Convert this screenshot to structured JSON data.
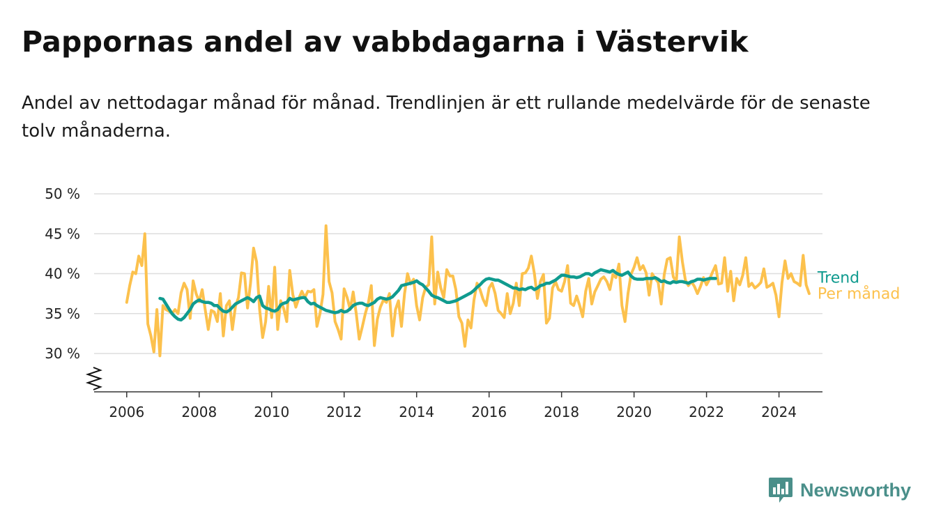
{
  "chart_data": {
    "type": "line",
    "title": "Pappornas andel av vabbdagarna i Västervik",
    "subtitle": "Andel av nettodagar månad för månad. Trendlinjen är ett rullande medelvärde för de senaste tolv månaderna.",
    "xlabel": "",
    "ylabel": "",
    "x_ticks": [
      "2006",
      "2008",
      "2010",
      "2012",
      "2014",
      "2016",
      "2018",
      "2020",
      "2022",
      "2024"
    ],
    "y_ticks": [
      "30 %",
      "35 %",
      "40 %",
      "45 %",
      "50 %"
    ],
    "ylim": [
      30,
      50
    ],
    "xlim": [
      2005.1,
      2025.2
    ],
    "grid": true,
    "legend_placement": "end-of-lines",
    "colors": {
      "monthly": "#fcc14d",
      "trend": "#109b8f",
      "grid": "#dddddd",
      "axis": "#333333"
    },
    "series": [
      {
        "name": "Per månad",
        "start": 2006.0,
        "step": 0.0833333,
        "values": [
          36.4,
          38.5,
          40.2,
          40.0,
          42.2,
          41.0,
          45.0,
          33.7,
          32.2,
          30.2,
          35.5,
          29.7,
          36.0,
          35.5,
          35.3,
          35.0,
          35.5,
          35.0,
          37.6,
          38.8,
          38.0,
          34.4,
          39.1,
          37.5,
          36.5,
          38.0,
          35.5,
          33.0,
          35.4,
          35.2,
          34.0,
          37.5,
          32.2,
          36.0,
          36.6,
          33.0,
          35.9,
          37.0,
          40.1,
          40.0,
          35.7,
          38.8,
          43.2,
          41.5,
          35.6,
          32.0,
          34.0,
          38.4,
          34.5,
          40.8,
          33.0,
          36.6,
          35.6,
          34.0,
          40.4,
          37.4,
          35.8,
          36.9,
          37.8,
          37.0,
          37.8,
          37.7,
          38.0,
          33.4,
          35.0,
          37.4,
          46.0,
          39.0,
          37.6,
          34.0,
          33.0,
          31.8,
          38.1,
          37.0,
          35.5,
          37.7,
          35.0,
          31.8,
          33.3,
          35.0,
          36.3,
          38.5,
          31.0,
          34.3,
          35.8,
          36.7,
          36.4,
          37.5,
          32.2,
          35.5,
          36.6,
          33.4,
          37.5,
          40.0,
          38.7,
          39.3,
          36.0,
          34.2,
          37.0,
          38.3,
          38.6,
          44.6,
          36.2,
          40.2,
          38.2,
          37.0,
          40.5,
          39.7,
          39.7,
          38.0,
          34.6,
          33.8,
          30.9,
          34.2,
          33.2,
          36.7,
          38.8,
          38.0,
          36.8,
          36.0,
          38.2,
          38.8,
          37.5,
          35.4,
          35.0,
          34.5,
          37.5,
          35.0,
          36.3,
          38.8,
          36.0,
          40.0,
          40.1,
          40.7,
          42.2,
          40.0,
          36.9,
          39.0,
          39.9,
          33.8,
          34.4,
          38.2,
          39.0,
          38.0,
          37.8,
          39.0,
          41.0,
          36.3,
          36.0,
          37.2,
          36.0,
          34.6,
          37.8,
          39.4,
          36.2,
          37.7,
          38.5,
          39.3,
          39.6,
          39.0,
          38.0,
          39.9,
          39.5,
          41.2,
          36.0,
          34.0,
          37.5,
          39.9,
          40.8,
          42.0,
          40.5,
          41.0,
          40.1,
          37.3,
          40.0,
          39.4,
          38.9,
          36.2,
          39.9,
          41.8,
          42.0,
          39.6,
          39.0,
          44.6,
          41.5,
          39.2,
          38.5,
          39.0,
          38.4,
          37.5,
          38.4,
          39.5,
          38.6,
          39.3,
          40.2,
          41.0,
          38.7,
          38.8,
          42.0,
          37.8,
          40.3,
          36.6,
          39.4,
          38.6,
          39.8,
          42.0,
          38.4,
          38.8,
          38.2,
          38.5,
          38.9,
          40.6,
          38.3,
          38.5,
          38.8,
          37.3,
          34.6,
          38.9,
          41.6,
          39.4,
          40.0,
          39.0,
          38.8,
          38.5,
          42.3,
          38.6,
          37.5
        ]
      },
      {
        "name": "Trend",
        "start": 2006.9167,
        "step": 0.0833333,
        "values": [
          36.9,
          36.8,
          36.2,
          35.6,
          35.0,
          34.6,
          34.3,
          34.2,
          34.5,
          35.0,
          35.5,
          36.2,
          36.5,
          36.7,
          36.5,
          36.4,
          36.4,
          36.3,
          36.0,
          36.0,
          35.6,
          35.3,
          35.2,
          35.4,
          35.8,
          36.2,
          36.4,
          36.6,
          36.8,
          37.0,
          36.8,
          36.5,
          37.0,
          37.2,
          36.0,
          35.7,
          35.6,
          35.4,
          35.3,
          35.5,
          36.1,
          36.3,
          36.4,
          36.9,
          36.7,
          36.8,
          36.9,
          37.0,
          37.0,
          36.5,
          36.2,
          36.3,
          36.0,
          35.8,
          35.6,
          35.4,
          35.3,
          35.2,
          35.1,
          35.2,
          35.4,
          35.2,
          35.3,
          35.6,
          36.0,
          36.2,
          36.3,
          36.3,
          36.1,
          36.0,
          36.2,
          36.4,
          36.8,
          37.0,
          36.9,
          36.8,
          36.9,
          37.1,
          37.5,
          37.9,
          38.5,
          38.6,
          38.7,
          38.8,
          38.9,
          39.1,
          38.8,
          38.6,
          38.2,
          37.8,
          37.3,
          37.1,
          37.0,
          36.8,
          36.6,
          36.4,
          36.4,
          36.5,
          36.6,
          36.8,
          37.0,
          37.2,
          37.4,
          37.6,
          37.9,
          38.3,
          38.6,
          39.0,
          39.3,
          39.4,
          39.3,
          39.2,
          39.2,
          39.0,
          38.8,
          38.6,
          38.4,
          38.2,
          38.2,
          38.0,
          38.1,
          38.0,
          38.2,
          38.3,
          38.0,
          38.2,
          38.5,
          38.6,
          38.8,
          38.8,
          39.0,
          39.2,
          39.5,
          39.8,
          39.8,
          39.7,
          39.6,
          39.6,
          39.5,
          39.6,
          39.8,
          40.0,
          40.0,
          39.8,
          40.1,
          40.3,
          40.5,
          40.4,
          40.3,
          40.2,
          40.4,
          40.1,
          39.9,
          39.8,
          40.0,
          40.2,
          39.7,
          39.4,
          39.3,
          39.3,
          39.3,
          39.4,
          39.4,
          39.4,
          39.5,
          39.3,
          39.0,
          39.1,
          38.9,
          38.8,
          39.0,
          38.9,
          39.0,
          39.0,
          38.9,
          38.8,
          39.0,
          39.1,
          39.3,
          39.3,
          39.2,
          39.3,
          39.4,
          39.4,
          39.4
        ]
      }
    ]
  },
  "legend": {
    "trend": "Trend",
    "monthly": "Per månad"
  },
  "brand": {
    "name": "Newsworthy",
    "icon": "bar-chart-speech-bubble-icon"
  }
}
